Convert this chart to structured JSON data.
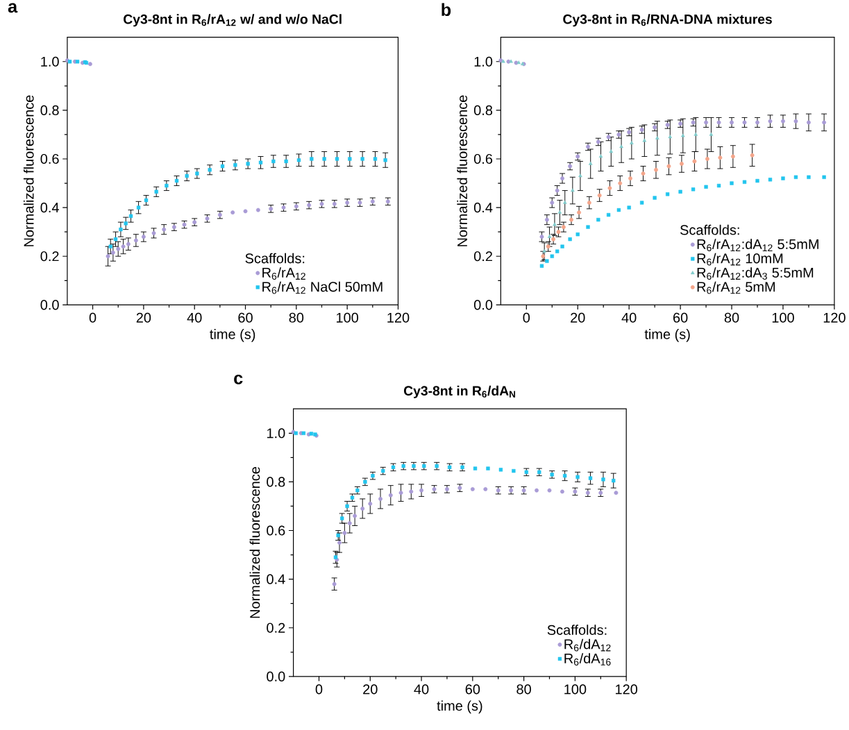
{
  "chart_data": [
    {
      "type": "scatter",
      "title": "Cy3-8nt in R$_{6}$/rA$_{12}$ w/ and w/o NaCl",
      "xlabel": "time (s)",
      "ylabel": "Normalized fluorescence",
      "legend_title": "Scaffolds:",
      "annotations": [
        "a"
      ],
      "legend": "bottom right",
      "xlim": [
        -10,
        120
      ],
      "ylim": [
        0,
        1.1
      ],
      "xticks": [
        0,
        20,
        40,
        60,
        80,
        100,
        120
      ],
      "yticks": [
        {
          "value": 0,
          "label": "0.0"
        },
        {
          "value": 0.2,
          "label": "0.2"
        },
        {
          "value": 0.4,
          "label": "0.4"
        },
        {
          "value": 0.6,
          "label": "0.6"
        },
        {
          "value": 0.8,
          "label": "0.8"
        },
        {
          "value": 1,
          "label": "1.0"
        }
      ],
      "series": [
        {
          "name": "R$_{6}$/rA$_{12}$",
          "color": "#a99bd6",
          "marker": "circle",
          "x": [
            -10,
            -7,
            -4,
            -1,
            6,
            8,
            10,
            12,
            14,
            17,
            20,
            24,
            28,
            32,
            36,
            40,
            45,
            50,
            55,
            60,
            65,
            70,
            75,
            80,
            85,
            90,
            95,
            100,
            105,
            110,
            116
          ],
          "values": [
            1.005,
            1.0,
            0.995,
            0.99,
            0.2,
            0.215,
            0.23,
            0.24,
            0.25,
            0.265,
            0.28,
            0.295,
            0.31,
            0.32,
            0.33,
            0.34,
            0.355,
            0.37,
            0.38,
            0.385,
            0.39,
            0.395,
            0.4,
            0.405,
            0.41,
            0.415,
            0.415,
            0.42,
            0.42,
            0.425,
            0.425
          ],
          "errors": [
            null,
            null,
            null,
            null,
            0.04,
            0.035,
            0.03,
            0.03,
            0.025,
            0.025,
            0.02,
            0.02,
            0.02,
            0.015,
            0.015,
            0.015,
            0.015,
            0.015,
            null,
            null,
            null,
            0.015,
            0.015,
            0.015,
            0.015,
            0.015,
            0.015,
            0.015,
            0.015,
            0.015,
            0.015
          ]
        },
        {
          "name": "R$_{6}$/rA$_{12}$ NaCl 50mM",
          "color": "#22c5ee",
          "marker": "square",
          "x": [
            -9,
            -6,
            -3,
            -2.5,
            7,
            9,
            11,
            13,
            15,
            18,
            21,
            25,
            29,
            33,
            37,
            41,
            46,
            51,
            56,
            61,
            66,
            71,
            76,
            81,
            86,
            91,
            96,
            101,
            106,
            111,
            115
          ],
          "values": [
            1.0,
            1.0,
            0.998,
            0.995,
            0.24,
            0.27,
            0.31,
            0.335,
            0.365,
            0.4,
            0.43,
            0.465,
            0.49,
            0.51,
            0.53,
            0.54,
            0.555,
            0.57,
            0.575,
            0.58,
            0.585,
            0.59,
            0.59,
            0.595,
            0.6,
            0.6,
            0.6,
            0.6,
            0.6,
            0.6,
            0.595
          ],
          "errors": [
            null,
            null,
            null,
            null,
            0.03,
            0.03,
            0.03,
            0.025,
            0.025,
            0.025,
            0.02,
            0.02,
            0.02,
            0.02,
            0.02,
            0.02,
            0.02,
            0.02,
            0.02,
            0.02,
            0.025,
            0.025,
            0.025,
            0.025,
            0.03,
            0.03,
            0.03,
            0.03,
            0.03,
            0.03,
            0.03
          ]
        }
      ]
    },
    {
      "type": "scatter",
      "title": "Cy3-8nt in R$_{6}$/RNA-DNA mixtures",
      "xlabel": "time (s)",
      "ylabel": "Normalized fluorescence",
      "legend_title": "Scaffolds:",
      "annotations": [
        "b"
      ],
      "legend": "bottom right",
      "xlim": [
        -10,
        120
      ],
      "ylim": [
        0,
        1.1
      ],
      "xticks": [
        0,
        20,
        40,
        60,
        80,
        100,
        120
      ],
      "yticks": [
        {
          "value": 0,
          "label": "0.0"
        },
        {
          "value": 0.2,
          "label": "0.2"
        },
        {
          "value": 0.4,
          "label": "0.4"
        },
        {
          "value": 0.6,
          "label": "0.6"
        },
        {
          "value": 0.8,
          "label": "0.8"
        },
        {
          "value": 1,
          "label": "1.0"
        }
      ],
      "series": [
        {
          "name": "R$_{6}$/rA$_{12}$:dA$_{12}$ 5:5mM",
          "color": "#a99bd6",
          "marker": "circle",
          "x": [
            -10,
            -7,
            -4,
            -1,
            6,
            8,
            10,
            12,
            14,
            17,
            20,
            24,
            28,
            32,
            36,
            40,
            45,
            50,
            55,
            60,
            65,
            70,
            75,
            80,
            85,
            90,
            95,
            100,
            105,
            110,
            116
          ],
          "values": [
            1.005,
            1.0,
            0.995,
            0.99,
            0.28,
            0.35,
            0.42,
            0.47,
            0.52,
            0.57,
            0.61,
            0.65,
            0.67,
            0.69,
            0.7,
            0.71,
            0.72,
            0.73,
            0.74,
            0.745,
            0.75,
            0.75,
            0.75,
            0.75,
            0.75,
            0.75,
            0.755,
            0.755,
            0.755,
            0.75,
            0.75
          ],
          "errors": [
            null,
            null,
            null,
            null,
            0.02,
            0.02,
            0.02,
            0.02,
            0.02,
            0.015,
            0.015,
            0.015,
            0.015,
            0.015,
            0.015,
            0.015,
            0.015,
            0.015,
            0.015,
            0.015,
            0.015,
            0.02,
            0.02,
            0.02,
            0.02,
            0.02,
            0.025,
            0.025,
            0.03,
            0.035,
            0.035
          ]
        },
        {
          "name": "R$_{6}$/rA$_{12}$ 10mM",
          "color": "#22c5ee",
          "marker": "square",
          "x": [
            6,
            8,
            10,
            12,
            14,
            17,
            20,
            24,
            28,
            32,
            36,
            40,
            45,
            50,
            55,
            60,
            65,
            70,
            75,
            80,
            85,
            90,
            95,
            100,
            105,
            110,
            116
          ],
          "values": [
            0.16,
            0.18,
            0.2,
            0.22,
            0.24,
            0.27,
            0.29,
            0.32,
            0.35,
            0.37,
            0.39,
            0.4,
            0.42,
            0.44,
            0.455,
            0.465,
            0.475,
            0.485,
            0.49,
            0.5,
            0.505,
            0.51,
            0.515,
            0.52,
            0.525,
            0.525,
            0.525
          ]
        },
        {
          "name": "R$_{6}$/rA$_{12}$:dA$_{3}$ 5:5mM",
          "color": "#80cccc",
          "marker": "triangle",
          "x": [
            -9,
            -6,
            -3,
            -1.5,
            7,
            9,
            11,
            13,
            15,
            18,
            21,
            25,
            29,
            33,
            37,
            41,
            46,
            51,
            56,
            61,
            66,
            72
          ],
          "values": [
            1.0,
            1.0,
            0.995,
            0.99,
            0.22,
            0.28,
            0.33,
            0.38,
            0.42,
            0.47,
            0.53,
            0.58,
            0.61,
            0.63,
            0.65,
            0.665,
            0.675,
            0.685,
            0.69,
            0.695,
            0.7,
            0.7
          ],
          "errors": [
            null,
            null,
            null,
            null,
            0.035,
            0.04,
            0.045,
            0.05,
            0.05,
            0.055,
            0.06,
            0.06,
            0.06,
            0.06,
            0.065,
            0.065,
            0.065,
            0.07,
            0.07,
            0.07,
            0.07,
            0.07
          ]
        },
        {
          "name": "R$_{6}$/rA$_{12}$ 5mM",
          "color": "#f4a58a",
          "marker": "circle",
          "x": [
            6.5,
            8.5,
            10.5,
            12.5,
            14.5,
            17.5,
            20.5,
            24.5,
            28.5,
            32.5,
            36.5,
            40.5,
            45.5,
            50.5,
            55.5,
            60.5,
            65.5,
            70.5,
            75.5,
            80.5,
            88
          ],
          "values": [
            0.2,
            0.24,
            0.27,
            0.3,
            0.32,
            0.35,
            0.38,
            0.42,
            0.45,
            0.48,
            0.5,
            0.52,
            0.54,
            0.555,
            0.57,
            0.58,
            0.59,
            0.6,
            0.605,
            0.61,
            0.615
          ],
          "errors": [
            0.02,
            0.02,
            0.02,
            0.02,
            0.02,
            0.02,
            0.025,
            0.025,
            0.025,
            0.03,
            0.03,
            0.03,
            0.03,
            0.035,
            0.035,
            0.035,
            0.04,
            0.04,
            0.045,
            0.045,
            0.045
          ]
        }
      ]
    },
    {
      "type": "scatter",
      "title": "Cy3-8nt in R$_{6}$/dA$_{N}$",
      "xlabel": "time (s)",
      "ylabel": "Normalized fluorescence",
      "legend_title": "Scaffolds:",
      "annotations": [
        "c"
      ],
      "legend": "bottom right",
      "xlim": [
        -10,
        120
      ],
      "ylim": [
        0,
        1.1
      ],
      "xticks": [
        0,
        20,
        40,
        60,
        80,
        100,
        120
      ],
      "yticks": [
        {
          "value": 0,
          "label": "0.0"
        },
        {
          "value": 0.2,
          "label": "0.2"
        },
        {
          "value": 0.4,
          "label": "0.4"
        },
        {
          "value": 0.6,
          "label": "0.6"
        },
        {
          "value": 0.8,
          "label": "0.8"
        },
        {
          "value": 1,
          "label": "1.0"
        }
      ],
      "series": [
        {
          "name": "R$_{6}$/dA$_{12}$",
          "color": "#a99bd6",
          "marker": "circle",
          "x": [
            -10,
            -7,
            -4,
            -1,
            6,
            7,
            8,
            10,
            12,
            14,
            17,
            20,
            24,
            28,
            32,
            36,
            40,
            45,
            50,
            55,
            60,
            65,
            70,
            75,
            80,
            85,
            90,
            95,
            100,
            105,
            110,
            116
          ],
          "values": [
            1.005,
            1.0,
            0.995,
            0.99,
            0.38,
            0.48,
            0.55,
            0.59,
            0.63,
            0.66,
            0.69,
            0.71,
            0.73,
            0.745,
            0.755,
            0.76,
            0.765,
            0.77,
            0.77,
            0.775,
            0.77,
            0.77,
            0.765,
            0.765,
            0.765,
            0.765,
            0.765,
            0.76,
            0.76,
            0.755,
            0.755,
            0.755
          ],
          "errors": [
            null,
            null,
            null,
            null,
            0.025,
            0.03,
            0.04,
            0.04,
            0.04,
            0.04,
            0.04,
            0.04,
            0.04,
            0.04,
            0.035,
            0.03,
            0.025,
            0.015,
            0.015,
            0.015,
            null,
            null,
            0.015,
            0.015,
            0.015,
            null,
            null,
            null,
            0.015,
            0.015,
            0.015,
            null
          ]
        },
        {
          "name": "R$_{6}$/dA$_{16}$",
          "color": "#22c5ee",
          "marker": "square",
          "x": [
            -9,
            -6,
            -3,
            -1.5,
            6.5,
            7.5,
            9,
            11,
            13,
            15,
            18,
            21,
            25,
            29,
            33,
            37,
            41,
            46,
            51,
            56,
            61,
            66,
            71,
            76,
            81,
            86,
            91,
            96,
            101,
            106,
            111,
            115
          ],
          "values": [
            1.0,
            1.0,
            0.998,
            0.995,
            0.49,
            0.58,
            0.65,
            0.7,
            0.735,
            0.765,
            0.8,
            0.825,
            0.845,
            0.86,
            0.865,
            0.865,
            0.865,
            0.865,
            0.86,
            0.86,
            0.855,
            0.855,
            0.85,
            0.845,
            0.84,
            0.84,
            0.83,
            0.825,
            0.82,
            0.815,
            0.81,
            0.805
          ],
          "errors": [
            null,
            null,
            null,
            null,
            0.025,
            0.02,
            0.02,
            0.02,
            0.015,
            0.015,
            0.015,
            0.015,
            0.015,
            0.015,
            0.015,
            0.015,
            0.015,
            0.015,
            0.015,
            0.015,
            null,
            null,
            null,
            null,
            0.015,
            0.015,
            0.015,
            0.02,
            0.02,
            0.025,
            0.03,
            0.03
          ]
        }
      ]
    }
  ]
}
